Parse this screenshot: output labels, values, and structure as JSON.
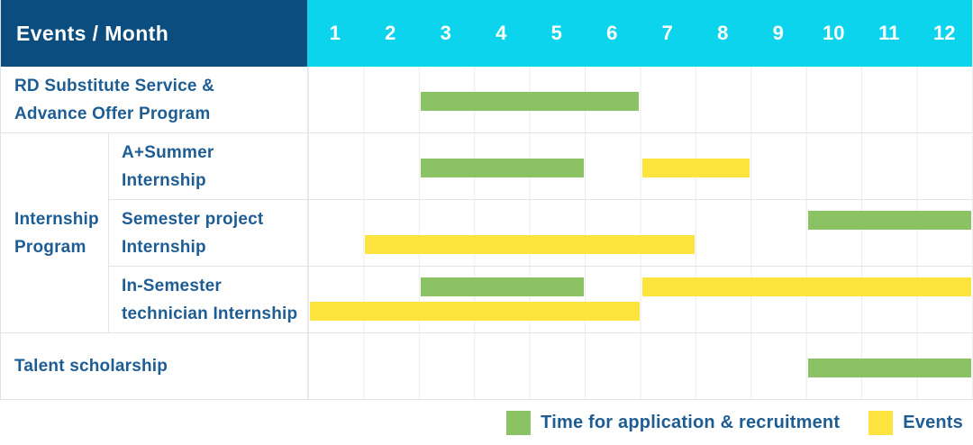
{
  "table": {
    "corner_label": "Events / Month",
    "months": [
      "1",
      "2",
      "3",
      "4",
      "5",
      "6",
      "7",
      "8",
      "9",
      "10",
      "11",
      "12"
    ],
    "group_cell": {
      "label": "Internship Program",
      "label_lines": [
        "Internship",
        "Program"
      ]
    },
    "rows": [
      {
        "group": null,
        "label": "RD Substitute Service & Advance Offer Program",
        "label_lines": [
          "RD Substitute Service &",
          "Advance Offer Program"
        ],
        "bars": [
          {
            "kind": "application",
            "start_month": 3,
            "end_month": 6,
            "lane": "single"
          }
        ]
      },
      {
        "group": "Internship Program",
        "label": "A+Summer Internship",
        "label_lines": [
          "A+Summer",
          "Internship"
        ],
        "bars": [
          {
            "kind": "application",
            "start_month": 3,
            "end_month": 5,
            "lane": "single"
          },
          {
            "kind": "event",
            "start_month": 7,
            "end_month": 8,
            "lane": "single"
          }
        ]
      },
      {
        "group": "Internship Program",
        "label": "Semester project Internship",
        "label_lines": [
          "Semester project",
          "Internship"
        ],
        "bars": [
          {
            "kind": "application",
            "start_month": 10,
            "end_month": 12,
            "lane": "top"
          },
          {
            "kind": "event",
            "start_month": 2,
            "end_month": 7,
            "lane": "bottom"
          }
        ]
      },
      {
        "group": "Internship Program",
        "label": "In-Semester technician Internship",
        "label_lines": [
          "In-Semester",
          "technician Internship"
        ],
        "bars": [
          {
            "kind": "application",
            "start_month": 3,
            "end_month": 5,
            "lane": "top"
          },
          {
            "kind": "event",
            "start_month": 7,
            "end_month": 12,
            "lane": "top"
          },
          {
            "kind": "event",
            "start_month": 1,
            "end_month": 6,
            "lane": "bottom"
          }
        ]
      },
      {
        "group": null,
        "label": "Talent scholarship",
        "label_lines": [
          "Talent scholarship"
        ],
        "bars": [
          {
            "kind": "application",
            "start_month": 10,
            "end_month": 12,
            "lane": "single"
          }
        ]
      }
    ]
  },
  "legend": {
    "items": [
      {
        "kind": "application",
        "label": "Time for application & recruitment"
      },
      {
        "kind": "event",
        "label": "Events"
      }
    ]
  },
  "colors": {
    "header_bg": "#0b4d7e",
    "month_header_bg": "#0bd4ec",
    "application_bar": "#8bc364",
    "event_bar": "#fde33e",
    "label_text": "#1e5d94",
    "grid_line": "#ececec",
    "separator": "#e4e4e4",
    "header_text": "#ffffff"
  },
  "chart_data": {
    "type": "bar",
    "subtype": "gantt",
    "title": "Events / Month",
    "x_axis": {
      "label": "Month",
      "ticks": [
        1,
        2,
        3,
        4,
        5,
        6,
        7,
        8,
        9,
        10,
        11,
        12
      ],
      "range": [
        1,
        12
      ]
    },
    "legend_position": "bottom-right",
    "categories": [
      "RD Substitute Service & Advance Offer Program",
      "A+Summer Internship",
      "Semester project Internship",
      "In-Semester technician Internship",
      "Talent scholarship"
    ],
    "group_labels": {
      "Internship Program": [
        "A+Summer Internship",
        "Semester project Internship",
        "In-Semester technician Internship"
      ]
    },
    "series": [
      {
        "name": "Time for application & recruitment",
        "color": "#8bc364",
        "spans": [
          {
            "category": "RD Substitute Service & Advance Offer Program",
            "start_month": 3,
            "end_month": 6
          },
          {
            "category": "A+Summer Internship",
            "start_month": 3,
            "end_month": 5
          },
          {
            "category": "Semester project Internship",
            "start_month": 10,
            "end_month": 12
          },
          {
            "category": "In-Semester technician Internship",
            "start_month": 3,
            "end_month": 5
          },
          {
            "category": "Talent scholarship",
            "start_month": 10,
            "end_month": 12
          }
        ]
      },
      {
        "name": "Events",
        "color": "#fde33e",
        "spans": [
          {
            "category": "A+Summer Internship",
            "start_month": 7,
            "end_month": 8
          },
          {
            "category": "Semester project Internship",
            "start_month": 2,
            "end_month": 7
          },
          {
            "category": "In-Semester technician Internship",
            "start_month": 7,
            "end_month": 12
          },
          {
            "category": "In-Semester technician Internship",
            "start_month": 1,
            "end_month": 6
          }
        ]
      }
    ]
  }
}
